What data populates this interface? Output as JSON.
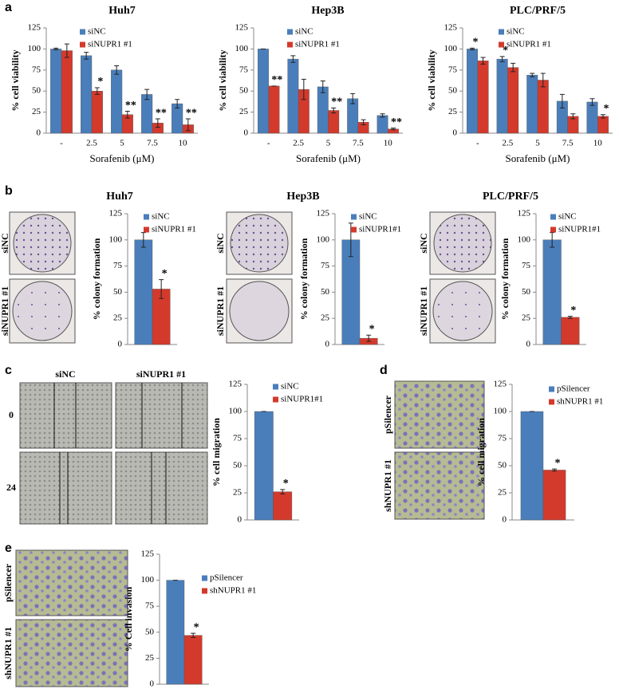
{
  "chart_data": [
    {
      "type": "bar",
      "title": "Huh7",
      "xlabel": "Sorafenib (μM)",
      "ylabel": "% cell viability",
      "categories": [
        "-",
        "2.5",
        "5",
        "7.5",
        "10"
      ],
      "ylim": [
        0,
        125
      ],
      "yticks": [
        0,
        25,
        50,
        75,
        100,
        125
      ],
      "series": [
        {
          "name": "siNC",
          "color": "#4a7ebb",
          "values": [
            100,
            92,
            75,
            46,
            35
          ],
          "errors": [
            1,
            4,
            5,
            6,
            5
          ],
          "markers": [
            null,
            null,
            null,
            null,
            null
          ]
        },
        {
          "name": "siNUPR1 #1",
          "color": "#d33a2c",
          "values": [
            98,
            50,
            22,
            12,
            10
          ],
          "errors": [
            8,
            4,
            4,
            5,
            7
          ],
          "markers": [
            null,
            "*",
            "**",
            "**",
            "**"
          ]
        }
      ]
    },
    {
      "type": "bar",
      "title": "Hep3B",
      "xlabel": "Sorafenib (μM)",
      "ylabel": "% cell viability",
      "categories": [
        "-",
        "2.5",
        "5",
        "7.5",
        "10"
      ],
      "ylim": [
        0,
        125
      ],
      "yticks": [
        0,
        25,
        50,
        75,
        100,
        125
      ],
      "series": [
        {
          "name": "siNC",
          "color": "#4a7ebb",
          "values": [
            100,
            88,
            55,
            41,
            21
          ],
          "errors": [
            0,
            4,
            7,
            6,
            2
          ],
          "markers": [
            null,
            null,
            null,
            null,
            null
          ]
        },
        {
          "name": "siNUPR1 #1",
          "color": "#d33a2c",
          "values": [
            56,
            52,
            27,
            13,
            5
          ],
          "errors": [
            0,
            12,
            3,
            3,
            1
          ],
          "markers": [
            "**",
            null,
            "**",
            null,
            "**"
          ]
        }
      ]
    },
    {
      "type": "bar",
      "title": "PLC/PRF/5",
      "xlabel": "Sorafenib (μM)",
      "ylabel": "% cell viability",
      "categories": [
        "-",
        "2.5",
        "5",
        "7.5",
        "10"
      ],
      "ylim": [
        0,
        125
      ],
      "yticks": [
        0,
        25,
        50,
        75,
        100,
        125
      ],
      "series": [
        {
          "name": "siNC",
          "color": "#4a7ebb",
          "values": [
            100,
            88,
            69,
            38,
            37
          ],
          "errors": [
            1,
            3,
            2,
            8,
            4
          ],
          "markers": [
            "*",
            "*",
            null,
            null,
            null
          ]
        },
        {
          "name": "siNUPR1 #1",
          "color": "#d33a2c",
          "values": [
            86,
            78,
            63,
            20,
            20
          ],
          "errors": [
            4,
            5,
            8,
            3,
            2
          ],
          "markers": [
            null,
            null,
            null,
            null,
            "*"
          ]
        }
      ]
    },
    {
      "type": "bar",
      "title": "Huh7",
      "ylabel": "% colony formation",
      "categories": [
        null
      ],
      "ylim": [
        0,
        125
      ],
      "yticks": [
        0,
        25,
        50,
        75,
        100,
        125
      ],
      "series": [
        {
          "name": "siNC",
          "color": "#4a7ebb",
          "values": [
            100
          ],
          "errors": [
            7
          ],
          "markers": [
            null
          ]
        },
        {
          "name": "siNUPR1 #1",
          "color": "#d33a2c",
          "values": [
            53
          ],
          "errors": [
            9
          ],
          "markers": [
            "*"
          ]
        }
      ]
    },
    {
      "type": "bar",
      "title": "Hep3B",
      "ylabel": "% colony formation",
      "categories": [
        null
      ],
      "ylim": [
        0,
        125
      ],
      "yticks": [
        0,
        25,
        50,
        75,
        100,
        125
      ],
      "series": [
        {
          "name": "siNC",
          "color": "#4a7ebb",
          "values": [
            100
          ],
          "errors": [
            16
          ],
          "markers": [
            null
          ]
        },
        {
          "name": "siNUPR1#1",
          "color": "#d33a2c",
          "values": [
            6
          ],
          "errors": [
            3
          ],
          "markers": [
            "*"
          ]
        }
      ]
    },
    {
      "type": "bar",
      "title": "PLC/PRF/5",
      "ylabel": "% colony formation",
      "categories": [
        null
      ],
      "ylim": [
        0,
        125
      ],
      "yticks": [
        0,
        25,
        50,
        75,
        100,
        125
      ],
      "series": [
        {
          "name": "siNC",
          "color": "#4a7ebb",
          "values": [
            100
          ],
          "errors": [
            7
          ],
          "markers": [
            null
          ]
        },
        {
          "name": "siNUPR1#1",
          "color": "#d33a2c",
          "values": [
            26
          ],
          "errors": [
            1
          ],
          "markers": [
            "*"
          ]
        }
      ]
    },
    {
      "type": "bar",
      "ylabel": "% cell migration",
      "categories": [
        null
      ],
      "ylim": [
        0,
        125
      ],
      "yticks": [
        0,
        25,
        50,
        75,
        100,
        125
      ],
      "series": [
        {
          "name": "siNC",
          "color": "#4a7ebb",
          "values": [
            100
          ],
          "errors": [
            0
          ],
          "markers": [
            null
          ]
        },
        {
          "name": "siNUPR1#1",
          "color": "#d33a2c",
          "values": [
            26
          ],
          "errors": [
            2
          ],
          "markers": [
            "*"
          ]
        }
      ]
    },
    {
      "type": "bar",
      "ylabel": "% cell migration",
      "categories": [
        null
      ],
      "ylim": [
        0,
        125
      ],
      "yticks": [
        0,
        25,
        50,
        75,
        100,
        125
      ],
      "series": [
        {
          "name": "pSilencer",
          "color": "#4a7ebb",
          "values": [
            100
          ],
          "errors": [
            0
          ],
          "markers": [
            null
          ]
        },
        {
          "name": "shNUPR1 #1",
          "color": "#d33a2c",
          "values": [
            46
          ],
          "errors": [
            1
          ],
          "markers": [
            "*"
          ]
        }
      ]
    },
    {
      "type": "bar",
      "ylabel": "% Cell invasion",
      "categories": [
        null
      ],
      "ylim": [
        0,
        125
      ],
      "yticks": [
        0,
        25,
        50,
        75,
        100,
        125
      ],
      "series": [
        {
          "name": "pSilencer",
          "color": "#4a7ebb",
          "values": [
            100
          ],
          "errors": [
            0
          ],
          "markers": [
            null
          ]
        },
        {
          "name": "shNUPR1 #1",
          "color": "#d33a2c",
          "values": [
            47
          ],
          "errors": [
            2
          ],
          "markers": [
            "*"
          ]
        }
      ]
    }
  ],
  "figure": {
    "panels": [
      "a",
      "b",
      "c",
      "d",
      "e"
    ],
    "b_row_labels": [
      "siNC",
      "siNUPR1 #1"
    ],
    "c_column_labels": [
      "siNC",
      "siNUPR1 #1"
    ],
    "c_row_labels": [
      "0",
      "24"
    ],
    "d_row_labels": [
      "pSilencer",
      "shNUPR1 #1"
    ],
    "e_row_labels": [
      "pSilencer",
      "shNUPR1 #1"
    ]
  }
}
